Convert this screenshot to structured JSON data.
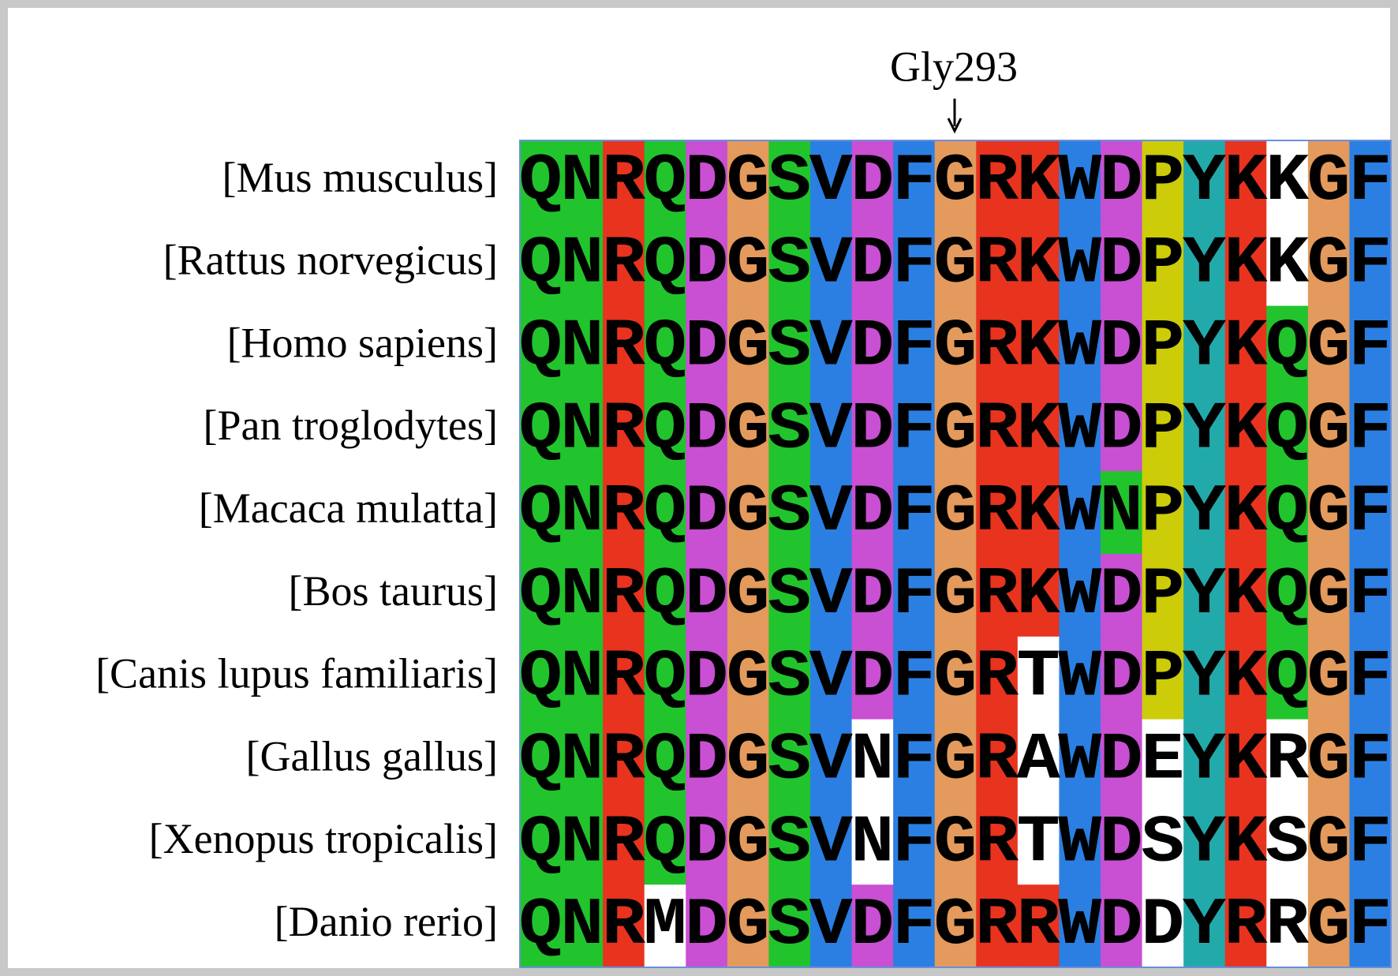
{
  "annotation": "Gly293",
  "residue_colors": {
    "Q": "#21c42c",
    "N": "#21c42c",
    "S": "#21c42c",
    "T": "#21c42c",
    "R": "#e8331f",
    "K": "#e8331f",
    "D": "#c94fd3",
    "E": "#c94fd3",
    "G": "#e39a5c",
    "V": "#2b7fe2",
    "F": "#2b7fe2",
    "W": "#2b7fe2",
    "M": "#2b7fe2",
    "A": "#2b7fe2",
    "P": "#cccc08",
    "Y": "#22aaaa"
  },
  "rows": [
    {
      "species": "[Mus musculus]",
      "residues": "QNRQDGSVDFGRKWDPYKKGF",
      "blank_columns": [
        18
      ]
    },
    {
      "species": "[Rattus norvegicus]",
      "residues": "QNRQDGSVDFGRKWDPYKKGF",
      "blank_columns": [
        18
      ]
    },
    {
      "species": "[Homo sapiens]",
      "residues": "QNRQDGSVDFGRKWDPYKQGF",
      "blank_columns": []
    },
    {
      "species": "[Pan troglodytes]",
      "residues": "QNRQDGSVDFGRKWDPYKQGF",
      "blank_columns": []
    },
    {
      "species": "[Macaca mulatta]",
      "residues": "QNRQDGSVDFGRKWNPYKQGF",
      "blank_columns": []
    },
    {
      "species": "[Bos taurus]",
      "residues": "QNRQDGSVDFGRKWDPYKQGF",
      "blank_columns": []
    },
    {
      "species": "[Canis lupus familiaris]",
      "residues": "QNRQDGSVDFGRTWDPYKQGF",
      "blank_columns": [
        12
      ]
    },
    {
      "species": "[Gallus gallus]",
      "residues": "QNRQDGSVNFGRAWDEYKRGF",
      "blank_columns": [
        8,
        12,
        15,
        18
      ]
    },
    {
      "species": "[Xenopus tropicalis]",
      "residues": "QNRQDGSVNFGRTWDSYKSGF",
      "blank_columns": [
        8,
        12,
        15,
        18
      ]
    },
    {
      "species": "[Danio rerio]",
      "residues": "QNRMDGSVDFGRRWDDYRRGF",
      "blank_columns": [
        3,
        15,
        18
      ]
    }
  ]
}
